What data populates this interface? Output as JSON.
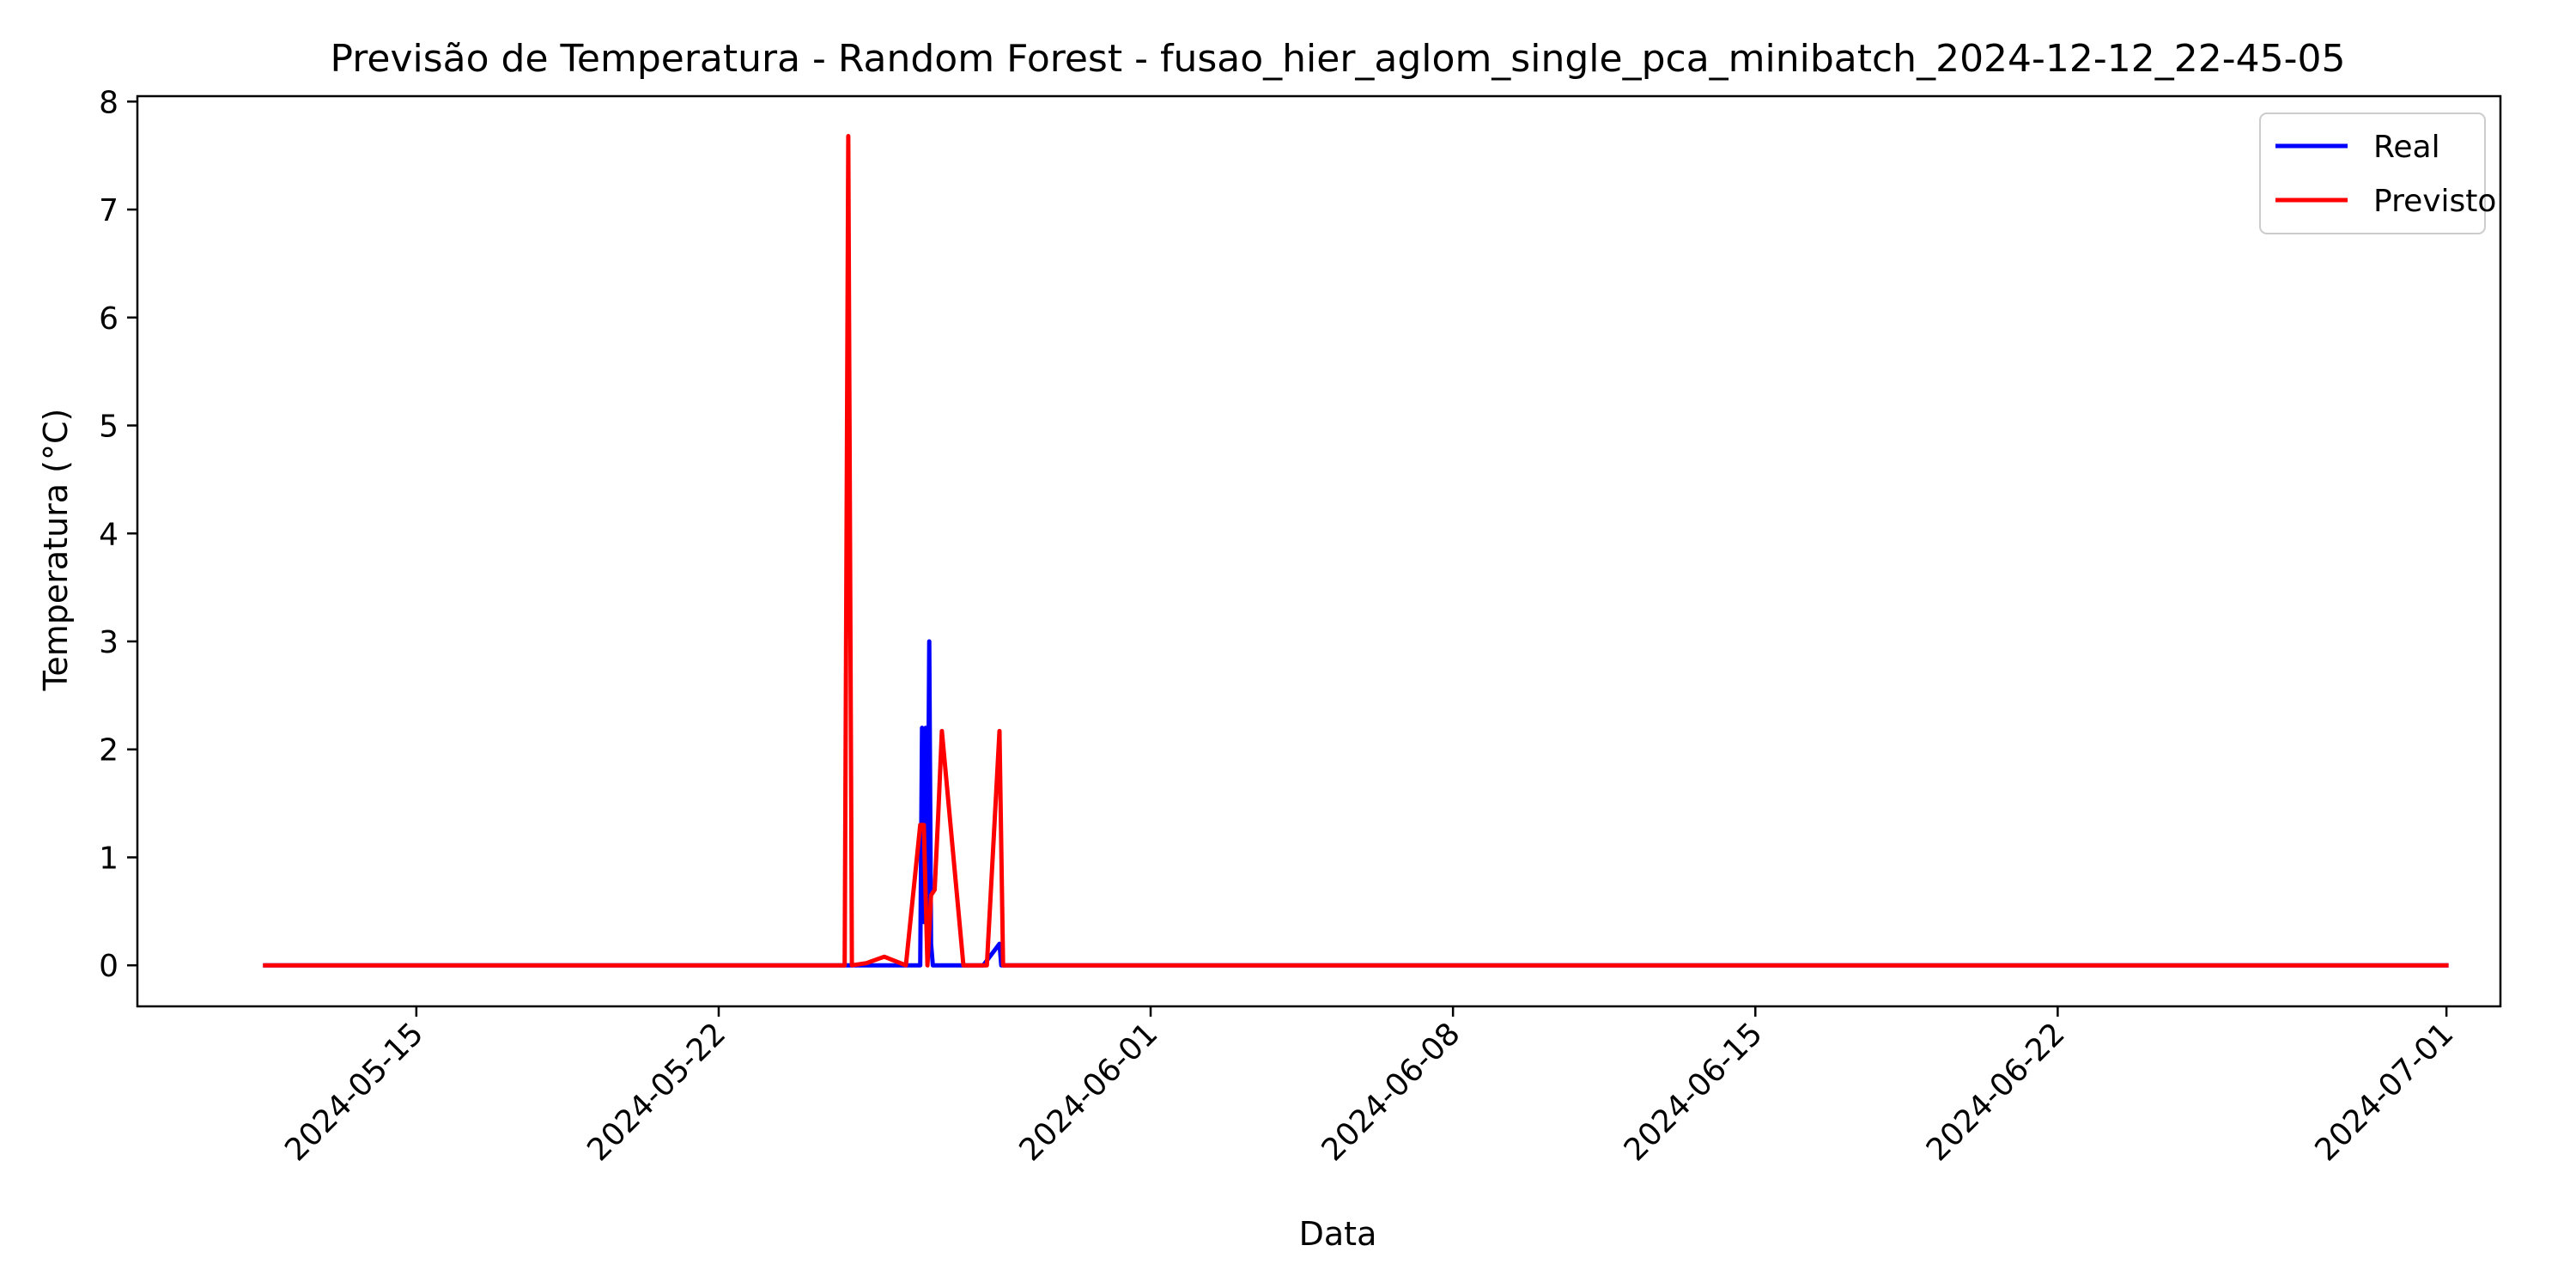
{
  "chart_data": {
    "type": "line",
    "title": "Previsão de Temperatura - Random Forest - fusao_hier_aglom_single_pca_minibatch_2024-12-12_22-45-05",
    "xlabel": "Data",
    "ylabel": "Temperatura (°C)",
    "x_ticks": [
      "2024-05-15",
      "2024-05-22",
      "2024-06-01",
      "2024-06-08",
      "2024-06-15",
      "2024-06-22",
      "2024-07-01"
    ],
    "y_ticks": [
      0,
      1,
      2,
      3,
      4,
      5,
      6,
      7,
      8
    ],
    "xlim": [
      "2024-05-08T13:00",
      "2024-07-02T06:00"
    ],
    "ylim": [
      -0.38,
      8.05
    ],
    "legend_position": "top-right",
    "series": [
      {
        "name": "Real",
        "color": "#0000ff",
        "x": [
          "2024-05-11T12:00",
          "2024-05-24T00:00",
          "2024-05-24T02:00",
          "2024-05-25T12:00",
          "2024-05-26T16:00",
          "2024-05-26T17:00",
          "2024-05-26T18:00",
          "2024-05-26T19:00",
          "2024-05-26T20:00",
          "2024-05-26T21:00",
          "2024-05-26T22:00",
          "2024-05-26T23:00",
          "2024-05-27T00:00",
          "2024-05-27T01:00",
          "2024-05-27T12:00",
          "2024-05-27T14:00",
          "2024-05-28T03:00",
          "2024-05-28T12:00",
          "2024-05-28T13:00",
          "2024-05-28T14:00",
          "2024-05-29T00:00",
          "2024-07-01T00:00"
        ],
        "y": [
          0,
          0,
          0,
          0,
          0,
          2.2,
          0.4,
          2.2,
          0.4,
          3.0,
          0.2,
          0,
          0,
          0,
          0,
          0,
          0,
          0.2,
          0,
          0,
          0,
          0
        ]
      },
      {
        "name": "Previsto",
        "color": "#ff0000",
        "x": [
          "2024-05-11T12:00",
          "2024-05-24T22:00",
          "2024-05-25T00:00",
          "2024-05-25T02:00",
          "2024-05-25T10:00",
          "2024-05-25T20:00",
          "2024-05-26T08:00",
          "2024-05-26T16:00",
          "2024-05-26T17:00",
          "2024-05-26T18:00",
          "2024-05-26T20:00",
          "2024-05-26T22:00",
          "2024-05-27T00:00",
          "2024-05-27T02:00",
          "2024-05-27T04:00",
          "2024-05-27T16:00",
          "2024-05-27T18:00",
          "2024-05-27T20:00",
          "2024-05-28T05:00",
          "2024-05-28T12:00",
          "2024-05-28T14:00",
          "2024-05-28T16:00",
          "2024-07-01T00:00"
        ],
        "y": [
          0,
          0,
          7.68,
          0,
          0.02,
          0.08,
          0,
          1.3,
          1.3,
          1.3,
          0,
          0.65,
          0.7,
          1.4,
          2.17,
          0,
          0,
          0,
          0,
          2.17,
          0,
          0,
          0
        ]
      }
    ]
  }
}
